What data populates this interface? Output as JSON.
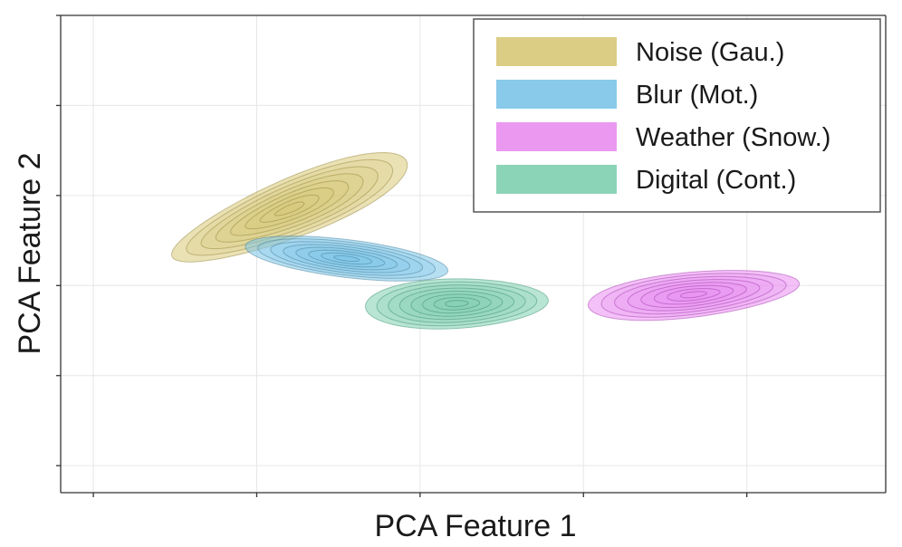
{
  "chart_data": {
    "type": "density-contour",
    "title": "",
    "xlabel": "PCA Feature 1",
    "ylabel": "PCA Feature 2",
    "x_ticks": [
      -4,
      -2,
      0,
      2,
      4
    ],
    "y_ticks": [
      -4,
      -2,
      0,
      2,
      4,
      6
    ],
    "tick_labels_shown": false,
    "xlim": [
      -4.4,
      5.7
    ],
    "ylim": [
      -4.6,
      6.0
    ],
    "grid": true,
    "legend_position": "top-right",
    "contour_levels": 8,
    "series": [
      {
        "name": "Noise (Gau.)",
        "color": "#d8c878",
        "contour_color": "#8c7c2c",
        "center": [
          -1.6,
          1.7
        ],
        "spread": [
          1.55,
          0.65
        ],
        "angle_deg": 22,
        "skew": 0.15
      },
      {
        "name": "Blur (Mot.)",
        "color": "#7cc4e8",
        "contour_color": "#3c7890",
        "center": [
          -0.9,
          0.6
        ],
        "spread": [
          1.25,
          0.42
        ],
        "angle_deg": -7,
        "skew": 0.0
      },
      {
        "name": "Weather (Snow.)",
        "color": "#e98df0",
        "contour_color": "#9c30a8",
        "center": [
          3.35,
          -0.2
        ],
        "spread": [
          1.3,
          0.5
        ],
        "angle_deg": 6,
        "skew": -0.1
      },
      {
        "name": "Digital (Cont.)",
        "color": "#7fcfb0",
        "contour_color": "#2f8a68",
        "center": [
          0.45,
          -0.4
        ],
        "spread": [
          1.12,
          0.55
        ],
        "angle_deg": 2,
        "skew": -0.1
      }
    ]
  }
}
